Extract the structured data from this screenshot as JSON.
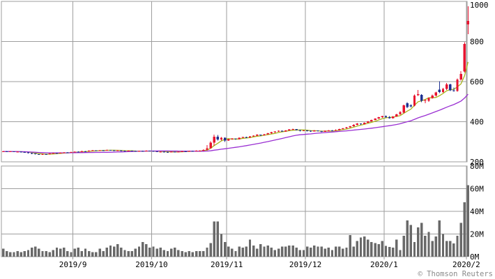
{
  "footer": {
    "copyright": "© Thomson Reuters"
  },
  "chart_data": {
    "type": "candlestick",
    "title": "",
    "description": "Daily stock price candlestick chart (Aug 2019 - Feb 2020) with two moving averages and a volume subpanel",
    "grid": true,
    "legend": false,
    "x_axis": {
      "tick_labels": [
        "2019/9",
        "2019/10",
        "2019/11",
        "2019/12",
        "2020/1",
        "2020/2"
      ],
      "tick_start_indices": [
        20,
        42,
        63,
        85,
        107,
        130
      ]
    },
    "price_axis": {
      "position": "right",
      "min": 200,
      "max": 1000,
      "ticks": [
        {
          "value": 200,
          "label": "200"
        },
        {
          "value": 400,
          "label": "400"
        },
        {
          "value": 600,
          "label": "600"
        },
        {
          "value": 800,
          "label": "800"
        },
        {
          "value": 1000,
          "label": "1000"
        }
      ],
      "gridline_values": [
        400,
        600,
        800
      ]
    },
    "volume_axis": {
      "position": "right",
      "min": 0,
      "max": 80,
      "unit": "millions",
      "ticks": [
        {
          "value": 0,
          "label": "0M"
        },
        {
          "value": 20,
          "label": "20M"
        },
        {
          "value": 40,
          "label": "40M"
        },
        {
          "value": 60,
          "label": "60M"
        },
        {
          "value": 80,
          "label": "80M"
        }
      ],
      "gridline_values": [
        20,
        40,
        60
      ]
    },
    "colors": {
      "up": "#e8132f",
      "down": "#1e3191",
      "volume_bar": "#696969",
      "grid": "#9e9e9e",
      "axis_text": "#000000",
      "copyright_text": "#8a8a8a",
      "background": "#ffffff",
      "ma_short": "#a8b41c",
      "ma_long": "#9a2fd2"
    },
    "series": {
      "ma_short": {
        "window": 5,
        "color": "#a8b41c"
      },
      "ma_long": {
        "window": 25,
        "color": "#9a2fd2"
      },
      "ohlc": [
        [
          250,
          254,
          248,
          252
        ],
        [
          252,
          254,
          249,
          251
        ],
        [
          251,
          254,
          250,
          252
        ],
        [
          252,
          253,
          248,
          250
        ],
        [
          250,
          253,
          248,
          251
        ],
        [
          251,
          252,
          247,
          249
        ],
        [
          249,
          250,
          245,
          247
        ],
        [
          247,
          248,
          242,
          244
        ],
        [
          244,
          245,
          239,
          241
        ],
        [
          241,
          242,
          236,
          238
        ],
        [
          238,
          239,
          234,
          236
        ],
        [
          236,
          241,
          235,
          239
        ],
        [
          239,
          240,
          236,
          238
        ],
        [
          238,
          243,
          237,
          241
        ],
        [
          241,
          245,
          240,
          243
        ],
        [
          243,
          244,
          240,
          242
        ],
        [
          242,
          247,
          241,
          245
        ],
        [
          245,
          249,
          244,
          247
        ],
        [
          247,
          248,
          244,
          246
        ],
        [
          246,
          251,
          245,
          249
        ],
        [
          249,
          253,
          248,
          251
        ],
        [
          251,
          252,
          248,
          250
        ],
        [
          250,
          255,
          249,
          253
        ],
        [
          253,
          254,
          250,
          252
        ],
        [
          252,
          257,
          251,
          255
        ],
        [
          255,
          259,
          254,
          257
        ],
        [
          257,
          258,
          254,
          256
        ],
        [
          256,
          260,
          255,
          258
        ],
        [
          258,
          259,
          255,
          257
        ],
        [
          257,
          261,
          256,
          259
        ],
        [
          259,
          260,
          256,
          258
        ],
        [
          258,
          259,
          254,
          256
        ],
        [
          256,
          259,
          255,
          257
        ],
        [
          257,
          258,
          253,
          255
        ],
        [
          255,
          256,
          251,
          253
        ],
        [
          253,
          257,
          252,
          255
        ],
        [
          255,
          256,
          252,
          254
        ],
        [
          254,
          255,
          250,
          252
        ],
        [
          252,
          256,
          251,
          254
        ],
        [
          254,
          255,
          251,
          253
        ],
        [
          253,
          257,
          252,
          255
        ],
        [
          255,
          256,
          252,
          254
        ],
        [
          254,
          255,
          250,
          252
        ],
        [
          252,
          253,
          248,
          250
        ],
        [
          250,
          253,
          249,
          251
        ],
        [
          251,
          252,
          247,
          249
        ],
        [
          249,
          250,
          246,
          248
        ],
        [
          248,
          252,
          247,
          250
        ],
        [
          250,
          251,
          247,
          249
        ],
        [
          249,
          253,
          248,
          251
        ],
        [
          251,
          255,
          250,
          253
        ],
        [
          253,
          254,
          250,
          252
        ],
        [
          252,
          256,
          251,
          254
        ],
        [
          254,
          255,
          251,
          253
        ],
        [
          253,
          257,
          252,
          255
        ],
        [
          255,
          258,
          254,
          256
        ],
        [
          256,
          262,
          254,
          260
        ],
        [
          260,
          284,
          258,
          268
        ],
        [
          268,
          302,
          266,
          296
        ],
        [
          296,
          336,
          280,
          326
        ],
        [
          326,
          334,
          306,
          312
        ],
        [
          312,
          324,
          306,
          320
        ],
        [
          320,
          322,
          300,
          306
        ],
        [
          306,
          315,
          304,
          313
        ],
        [
          313,
          318,
          310,
          316
        ],
        [
          316,
          317,
          310,
          313
        ],
        [
          313,
          322,
          311,
          320
        ],
        [
          320,
          326,
          318,
          324
        ],
        [
          324,
          325,
          318,
          321
        ],
        [
          321,
          329,
          319,
          327
        ],
        [
          327,
          333,
          325,
          331
        ],
        [
          331,
          337,
          329,
          335
        ],
        [
          335,
          336,
          329,
          332
        ],
        [
          332,
          340,
          330,
          338
        ],
        [
          338,
          344,
          336,
          342
        ],
        [
          342,
          349,
          340,
          347
        ],
        [
          347,
          353,
          345,
          351
        ],
        [
          351,
          357,
          349,
          355
        ],
        [
          355,
          356,
          349,
          352
        ],
        [
          352,
          359,
          350,
          357
        ],
        [
          357,
          363,
          355,
          361
        ],
        [
          361,
          365,
          359,
          363
        ],
        [
          363,
          364,
          356,
          359
        ],
        [
          359,
          360,
          352,
          355
        ],
        [
          355,
          359,
          353,
          357
        ],
        [
          357,
          358,
          352,
          355
        ],
        [
          355,
          356,
          350,
          352
        ],
        [
          352,
          358,
          351,
          356
        ],
        [
          356,
          357,
          351,
          353
        ],
        [
          353,
          354,
          348,
          350
        ],
        [
          350,
          356,
          349,
          354
        ],
        [
          354,
          359,
          352,
          357
        ],
        [
          357,
          358,
          353,
          355
        ],
        [
          355,
          361,
          354,
          359
        ],
        [
          359,
          365,
          357,
          363
        ],
        [
          363,
          369,
          361,
          367
        ],
        [
          367,
          374,
          365,
          372
        ],
        [
          372,
          380,
          370,
          378
        ],
        [
          378,
          387,
          376,
          385
        ],
        [
          385,
          393,
          383,
          391
        ],
        [
          391,
          392,
          385,
          388
        ],
        [
          388,
          397,
          386,
          395
        ],
        [
          395,
          404,
          393,
          402
        ],
        [
          402,
          411,
          400,
          409
        ],
        [
          409,
          418,
          407,
          416
        ],
        [
          416,
          424,
          414,
          422
        ],
        [
          422,
          430,
          420,
          428
        ],
        [
          428,
          432,
          420,
          423
        ],
        [
          423,
          427,
          415,
          418
        ],
        [
          418,
          428,
          415,
          426
        ],
        [
          426,
          440,
          424,
          437
        ],
        [
          437,
          452,
          435,
          448
        ],
        [
          445,
          485,
          442,
          481
        ],
        [
          492,
          498,
          468,
          473
        ],
        [
          481,
          487,
          471,
          476
        ],
        [
          480,
          535,
          477,
          530
        ],
        [
          532,
          559,
          528,
          538
        ],
        [
          534,
          538,
          498,
          504
        ],
        [
          504,
          512,
          492,
          507
        ],
        [
          505,
          522,
          500,
          518
        ],
        [
          518,
          535,
          514,
          530
        ],
        [
          530,
          550,
          526,
          546
        ],
        [
          560,
          602,
          542,
          548
        ],
        [
          548,
          568,
          544,
          563
        ],
        [
          563,
          593,
          559,
          586
        ],
        [
          586,
          589,
          553,
          557
        ],
        [
          557,
          570,
          549,
          553
        ],
        [
          553,
          616,
          550,
          610
        ],
        [
          610,
          652,
          606,
          638
        ],
        [
          650,
          796,
          645,
          788
        ],
        [
          886,
          976,
          836,
          902
        ]
      ],
      "volume_millions": [
        7,
        5,
        4,
        4,
        5,
        4,
        5,
        6,
        8,
        9,
        7,
        5,
        5,
        4,
        6,
        8,
        7,
        8,
        5,
        4,
        7,
        8,
        5,
        7,
        5,
        4,
        4,
        7,
        5,
        8,
        10,
        9,
        11,
        8,
        6,
        5,
        5,
        7,
        9,
        13,
        11,
        8,
        9,
        7,
        8,
        6,
        5,
        7,
        8,
        6,
        5,
        4,
        5,
        4,
        5,
        5,
        5,
        8,
        12,
        31,
        31,
        20,
        13,
        9,
        7,
        5,
        9,
        8,
        9,
        15,
        10,
        7,
        11,
        9,
        10,
        8,
        6,
        7,
        9,
        9,
        10,
        10,
        8,
        6,
        6,
        9,
        8,
        10,
        9,
        9,
        7,
        8,
        6,
        9,
        9,
        7,
        8,
        19,
        9,
        14,
        17,
        18,
        15,
        13,
        12,
        11,
        14,
        9.5,
        8.6,
        8,
        15,
        6,
        18.5,
        32,
        28,
        13,
        26,
        30,
        18.5,
        22,
        13.7,
        18,
        32,
        20,
        14,
        13.7,
        11.6,
        18.5,
        30,
        48,
        63
      ]
    }
  }
}
